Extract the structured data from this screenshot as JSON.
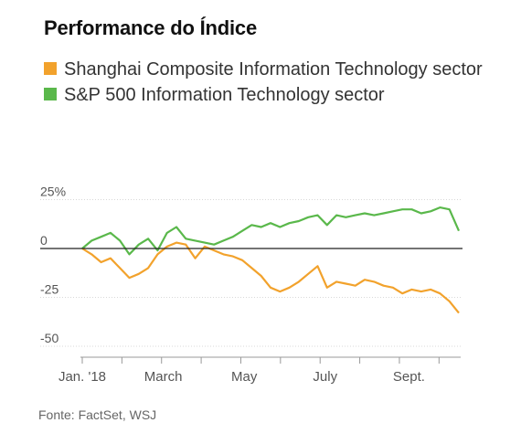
{
  "title": "Performance do Índice",
  "source": "Fonte: FactSet, WSJ",
  "colors": {
    "shanghai": "#f2a22c",
    "sp500": "#5ab84b",
    "zero_line": "#222222",
    "grid": "#d8d8d8"
  },
  "chart_data": {
    "type": "line",
    "title": "Performance do Índice",
    "xlabel": "",
    "ylabel": "",
    "ylim": [
      -50,
      25
    ],
    "yticks": [
      25,
      0,
      -25,
      -50
    ],
    "ytick_labels": [
      "25%",
      "0",
      "-25",
      "-50"
    ],
    "xticks": [
      "Jan. '18",
      "March",
      "May",
      "July",
      "Sept."
    ],
    "xtick_positions": [
      0,
      8.6,
      17.2,
      25.8,
      34.7
    ],
    "grid": true,
    "legend_position": "top-left",
    "x": [
      0,
      1,
      2,
      3,
      4,
      5,
      6,
      7,
      8,
      9,
      10,
      11,
      12,
      13,
      14,
      15,
      16,
      17,
      18,
      19,
      20,
      21,
      22,
      23,
      24,
      25,
      26,
      27,
      28,
      29,
      30,
      31,
      32,
      33,
      34,
      35,
      36,
      37,
      38,
      39,
      40
    ],
    "series": [
      {
        "name": "Shanghai Composite Information Technology sector",
        "values": [
          0,
          -3,
          -7,
          -5,
          -10,
          -15,
          -13,
          -10,
          -3,
          1,
          3,
          2,
          -5,
          1,
          -1,
          -3,
          -4,
          -6,
          -10,
          -14,
          -20,
          -22,
          -20,
          -17,
          -13,
          -9,
          -20,
          -17,
          -18,
          -19,
          -16,
          -17,
          -19,
          -20,
          -23,
          -21,
          -22,
          -21,
          -23,
          -27,
          -33
        ]
      },
      {
        "name": "S&P 500 Information Technology sector",
        "values": [
          0,
          4,
          6,
          8,
          4,
          -3,
          2,
          5,
          -1,
          8,
          11,
          5,
          4,
          3,
          2,
          4,
          6,
          9,
          12,
          11,
          13,
          11,
          13,
          14,
          16,
          17,
          12,
          17,
          16,
          17,
          18,
          17,
          18,
          19,
          20,
          20,
          18,
          19,
          21,
          20,
          9
        ]
      }
    ]
  }
}
